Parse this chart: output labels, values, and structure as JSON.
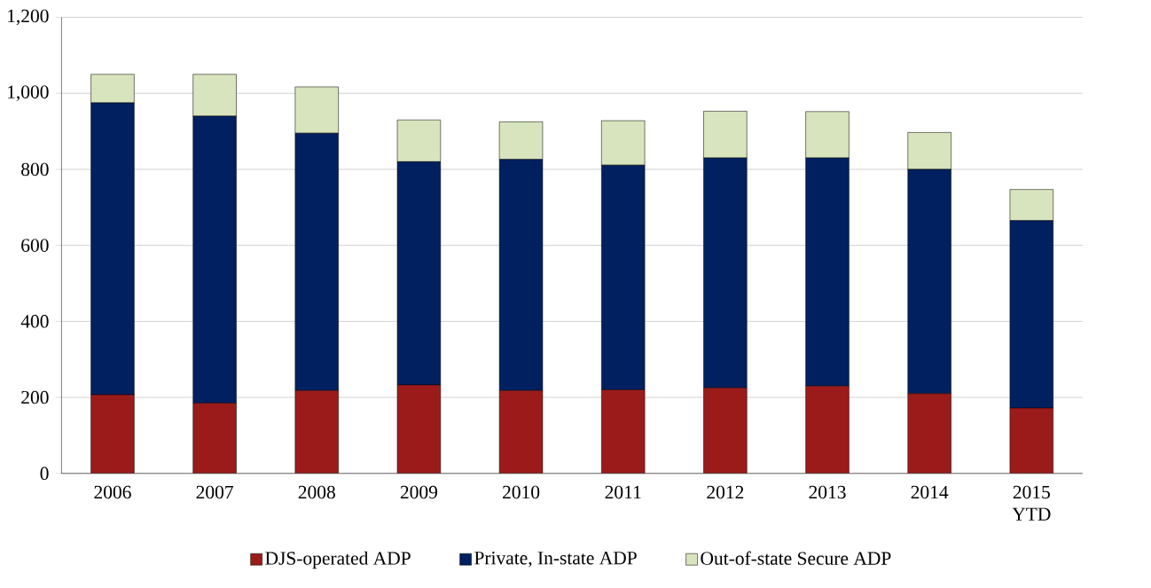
{
  "chart_data": {
    "type": "bar",
    "stacked": true,
    "categories": [
      "2006",
      "2007",
      "2008",
      "2009",
      "2010",
      "2011",
      "2012",
      "2013",
      "2014",
      "2015 YTD"
    ],
    "series": [
      {
        "name": "DJS-operated ADP",
        "color": "#9b1b1b",
        "values": [
          207,
          185,
          218,
          233,
          218,
          220,
          225,
          230,
          210,
          172
        ]
      },
      {
        "name": "Private, In-state ADP",
        "color": "#002060",
        "values": [
          768,
          755,
          677,
          587,
          608,
          591,
          605,
          600,
          590,
          493
        ]
      },
      {
        "name": "Out-of-state Secure ADP",
        "color": "#d7e4bd",
        "values": [
          75,
          110,
          122,
          110,
          99,
          117,
          123,
          122,
          97,
          82
        ]
      }
    ],
    "ylim": [
      0,
      1200
    ],
    "yticks": [
      0,
      200,
      400,
      600,
      800,
      {
        "value": 1000,
        "label": "1,000"
      },
      {
        "value": 1200,
        "label": "1,200"
      }
    ],
    "grid": "y",
    "legend": "bottom"
  }
}
